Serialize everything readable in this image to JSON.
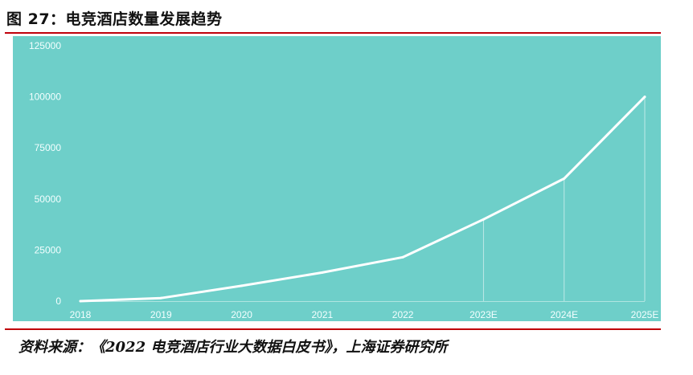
{
  "figure": {
    "title": "图 27：电竞酒店数量发展趋势",
    "source": "资料来源：《2022 电竞酒店行业大数据白皮书》，上海证券研究所"
  },
  "colors": {
    "panel": "#6ecfc9",
    "line": "#ffffff",
    "rule": "#c0000b",
    "tick_text": "#f4ffff"
  },
  "chart_data": {
    "type": "line",
    "title": "图 27：电竞酒店数量发展趋势",
    "xlabel": "",
    "ylabel": "",
    "categories": [
      "2018",
      "2019",
      "2020",
      "2021",
      "2022",
      "2023E",
      "2024E",
      "2025E"
    ],
    "series": [
      {
        "values": [
          0,
          1500,
          7500,
          14000,
          21500,
          40000,
          60000,
          100000
        ]
      }
    ],
    "ylim": [
      0,
      125000
    ],
    "yticks": [
      "0",
      "25000",
      "50000",
      "75000",
      "100000",
      "125000"
    ],
    "ytick_values": [
      0,
      25000,
      50000,
      75000,
      100000,
      125000
    ],
    "grid": false,
    "legend": "none",
    "drop_lines_for": [
      "2023E",
      "2024E",
      "2025E"
    ]
  }
}
